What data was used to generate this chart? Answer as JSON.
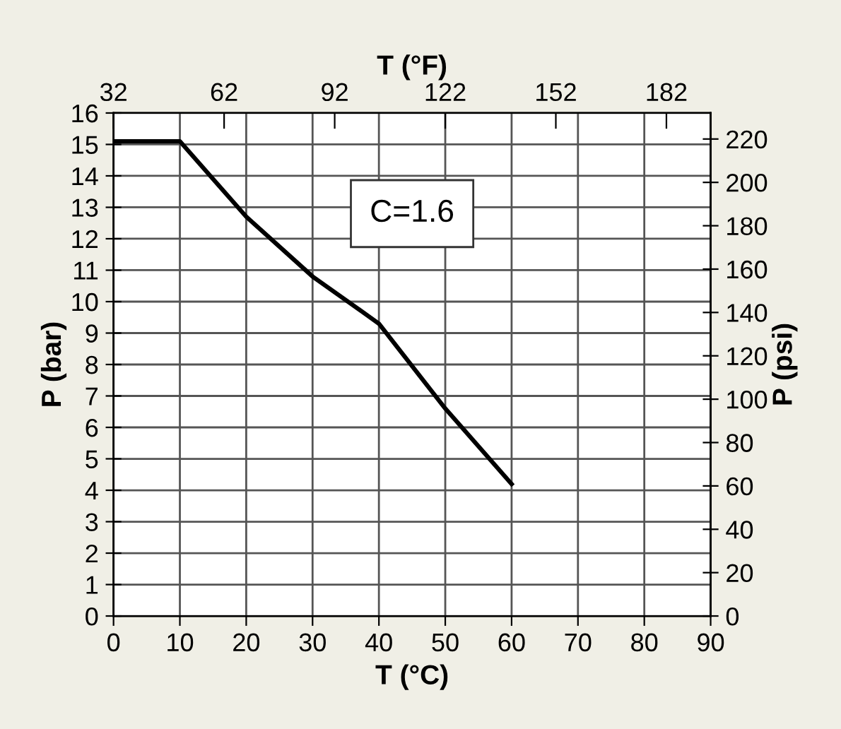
{
  "chart_data": {
    "type": "line",
    "xlabel": "T (°C)",
    "ylabel": "P (bar)",
    "y2label": "P (psi)",
    "x2label": "T (°F)",
    "x": [
      0,
      10,
      20,
      30,
      40,
      50,
      60
    ],
    "series": [
      {
        "color": "#000000",
        "values": [
          15.1,
          15.1,
          12.7,
          10.8,
          9.3,
          6.6,
          4.2
        ]
      }
    ],
    "xlim": [
      0,
      90
    ],
    "xticks": [
      0,
      10,
      20,
      30,
      40,
      50,
      60,
      70,
      80,
      90
    ],
    "ylim": [
      0,
      16
    ],
    "yticks": [
      0,
      1,
      2,
      3,
      4,
      5,
      6,
      7,
      8,
      9,
      10,
      11,
      12,
      13,
      14,
      15,
      16
    ],
    "y2lim": [
      0,
      232
    ],
    "y2ticks": [
      0,
      20,
      40,
      60,
      80,
      100,
      120,
      140,
      160,
      180,
      200,
      220
    ],
    "x2lim": [
      32,
      194
    ],
    "x2ticks": [
      32,
      62,
      92,
      122,
      152,
      182
    ],
    "annotations": [
      "C=1.6"
    ],
    "grid": true,
    "marker": "none",
    "line_style": "solid",
    "legend": false
  }
}
